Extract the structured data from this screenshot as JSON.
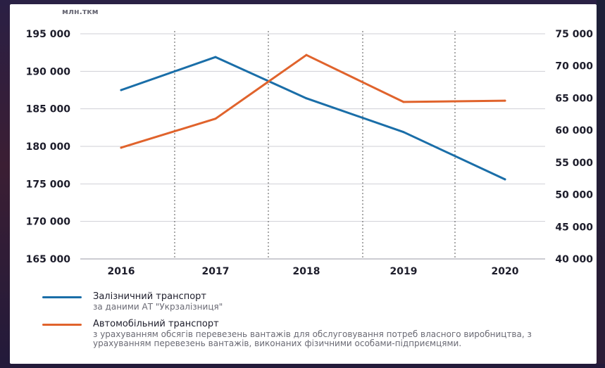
{
  "chart_data": {
    "type": "line",
    "unit_label": "млн.ткм",
    "categories": [
      "2016",
      "2017",
      "2018",
      "2019",
      "2020"
    ],
    "y_left": {
      "range": [
        165000,
        195000
      ],
      "ticks": [
        "165 000",
        "170 000",
        "175 000",
        "180 000",
        "185 000",
        "190 000",
        "195 000"
      ]
    },
    "y_right": {
      "range": [
        40000,
        75000
      ],
      "ticks": [
        "40 000",
        "45 000",
        "50 000",
        "55 000",
        "60 000",
        "65 000",
        "70 000",
        "75 000"
      ]
    },
    "grid": "horizontal solid, vertical dotted between years",
    "series": [
      {
        "name": "Залізничний транспорт",
        "note": "за даними АТ \"Укрзалізниця\"",
        "axis": "left",
        "color": "#1a6ea8",
        "values": [
          187500,
          191900,
          186400,
          181900,
          175600
        ]
      },
      {
        "name": "Автомобільний транспорт",
        "note": "з урахуванням обсягів перевезень вантажів для обслуговування потреб власного виробництва, з урахуванням перевезень вантажів, виконаних фізичними особами-підприємцями.",
        "axis": "right",
        "color": "#e0632c",
        "values": [
          57300,
          61800,
          71700,
          64400,
          64600
        ]
      }
    ],
    "legend_position": "bottom-left"
  }
}
